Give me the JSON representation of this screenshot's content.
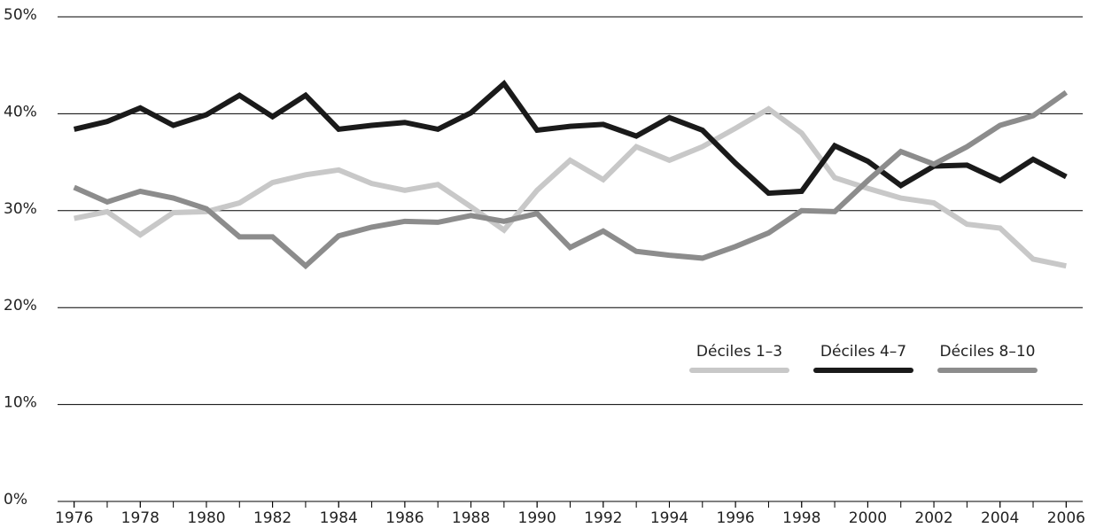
{
  "chart_data": {
    "type": "line",
    "x": [
      1976,
      1977,
      1978,
      1979,
      1980,
      1981,
      1982,
      1983,
      1984,
      1985,
      1986,
      1987,
      1988,
      1989,
      1990,
      1991,
      1992,
      1993,
      1994,
      1995,
      1996,
      1997,
      1998,
      1999,
      2000,
      2001,
      2002,
      2003,
      2004,
      2005,
      2006
    ],
    "series": [
      {
        "name": "Déciles 1–3",
        "color": "#c8c8c8",
        "values": [
          29.2,
          29.9,
          27.5,
          29.8,
          29.9,
          30.8,
          32.9,
          33.7,
          34.2,
          32.8,
          32.1,
          32.7,
          30.4,
          28.0,
          32.1,
          35.2,
          33.2,
          36.6,
          35.2,
          36.6,
          38.5,
          40.5,
          38.0,
          33.4,
          32.3,
          31.3,
          30.8,
          28.6,
          28.2,
          25.0,
          24.3
        ]
      },
      {
        "name": "Déciles 4–7",
        "color": "#1a1a1a",
        "values": [
          38.4,
          39.2,
          40.6,
          38.8,
          39.9,
          41.9,
          39.7,
          41.9,
          38.4,
          38.8,
          39.1,
          38.4,
          40.1,
          43.1,
          38.3,
          38.7,
          38.9,
          37.7,
          39.6,
          38.3,
          34.9,
          31.8,
          32.0,
          36.7,
          35.1,
          32.6,
          34.6,
          34.7,
          33.1,
          35.3,
          33.5
        ]
      },
      {
        "name": "Déciles 8–10",
        "color": "#8c8c8c",
        "values": [
          32.4,
          30.9,
          32.0,
          31.3,
          30.2,
          27.3,
          27.3,
          24.3,
          27.4,
          28.3,
          28.9,
          28.8,
          29.5,
          28.9,
          29.7,
          26.2,
          27.9,
          25.8,
          25.4,
          25.1,
          26.3,
          27.7,
          30.0,
          29.9,
          33.1,
          36.1,
          34.8,
          36.6,
          38.8,
          39.8,
          42.2
        ]
      }
    ],
    "xlim": [
      1975.5,
      2006.5
    ],
    "xticks": [
      1976,
      1978,
      1980,
      1982,
      1984,
      1986,
      1988,
      1990,
      1992,
      1994,
      1996,
      1998,
      2000,
      2002,
      2004,
      2006
    ],
    "ylim": [
      0,
      50
    ],
    "yticks": [
      {
        "value": 0,
        "label": "0%"
      },
      {
        "value": 10,
        "label": "10%"
      },
      {
        "value": 20,
        "label": "20%"
      },
      {
        "value": 30,
        "label": "30%"
      },
      {
        "value": 40,
        "label": "40%"
      },
      {
        "value": 50,
        "label": "50%"
      }
    ],
    "grid": true,
    "legend": "right"
  }
}
